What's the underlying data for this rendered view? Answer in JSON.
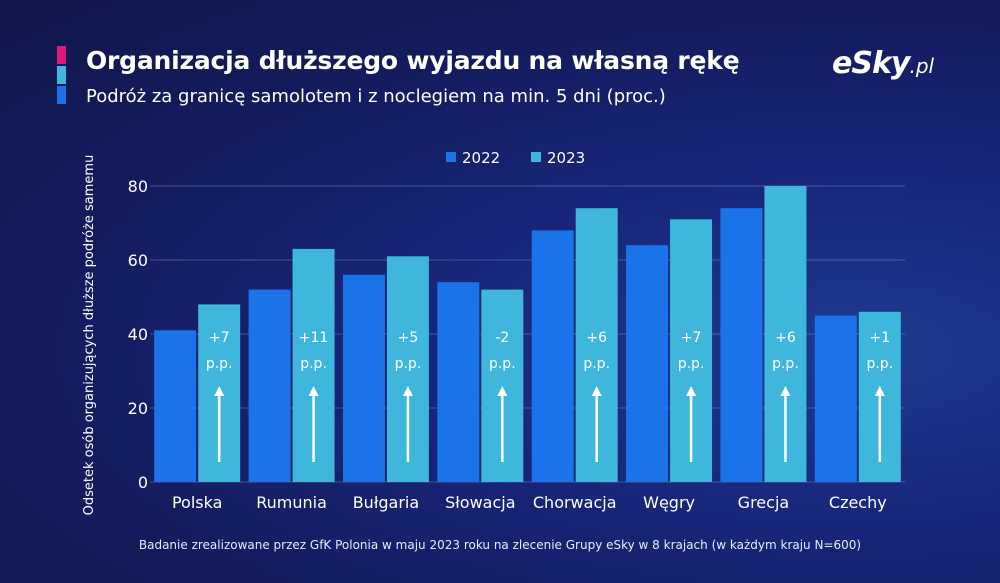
{
  "header": {
    "title": "Organizacja dłuższego wyjazdu na własną rękę",
    "subtitle": "Podróż za granicę samolotem i z noclegiem na min. 5 dni (proc.)",
    "accent_colors": [
      "#e0187a",
      "#3fb6dc",
      "#1a73e8"
    ]
  },
  "brand": {
    "logo_main": "eSky",
    "logo_suffix": ".pl"
  },
  "footnote": "Badanie zrealizowane przez GfK Polonia w maju 2023 roku na zlecenie Grupy eSky w 8 krajach (w każdym kraju N=600)",
  "chart_data": {
    "type": "bar",
    "ylabel": "Odsetek osób organizujących dłuższe podróże samemu",
    "xlabel": "",
    "ylim": [
      0,
      80
    ],
    "yticks": [
      0,
      20,
      40,
      60,
      80
    ],
    "grid": true,
    "legend_position": "top-center",
    "categories": [
      "Polska",
      "Rumunia",
      "Bułgaria",
      "Słowacja",
      "Chorwacja",
      "Węgry",
      "Grecja",
      "Czechy"
    ],
    "series": [
      {
        "name": "2022",
        "color": "#1a73e8",
        "values": [
          41,
          52,
          56,
          54,
          68,
          64,
          74,
          45
        ]
      },
      {
        "name": "2023",
        "color": "#3fb6dc",
        "values": [
          48,
          63,
          61,
          52,
          74,
          71,
          80,
          46
        ]
      }
    ],
    "annotations": {
      "change": [
        "+7",
        "+11",
        "+5",
        "-2",
        "+6",
        "+7",
        "+6",
        "+1"
      ],
      "unit": "p.p."
    }
  }
}
